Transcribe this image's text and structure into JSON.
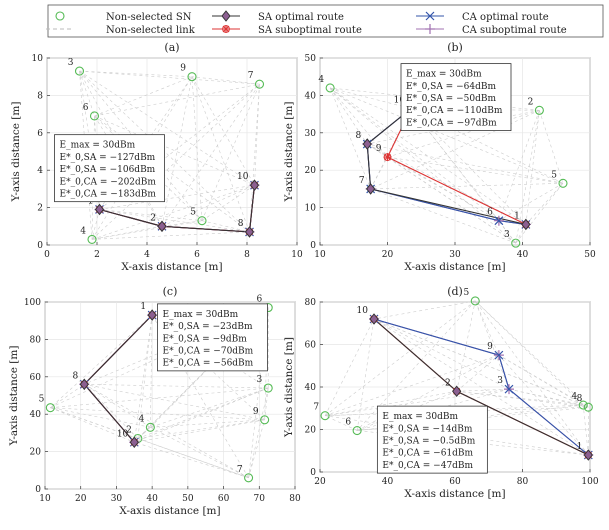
{
  "legend": {
    "items": [
      {
        "key": "nonselected_sn",
        "label": "Non-selected SN",
        "kind": "circle",
        "color": "#55bb55"
      },
      {
        "key": "nonselected_link",
        "label": "Non-selected link",
        "kind": "dash",
        "color": "#bbbbbb"
      },
      {
        "key": "sa_opt",
        "label": "SA optimal route",
        "kind": "diamond",
        "color": "#333333"
      },
      {
        "key": "sa_sub",
        "label": "SA suboptimal route",
        "kind": "star",
        "color": "#dd3333"
      },
      {
        "key": "ca_opt",
        "label": "CA optimal route",
        "kind": "x",
        "color": "#3355aa"
      },
      {
        "key": "ca_sub",
        "label": "CA suboptimal route",
        "kind": "plus",
        "color": "#a070b0"
      }
    ]
  },
  "colors": {
    "sa_opt": "#333333",
    "sa_sub": "#dd3333",
    "ca_opt": "#3355aa",
    "ca_sub": "#a070b0",
    "node": "#55bb55",
    "link": "#cccccc",
    "route_node_fill": "#8c5f91"
  },
  "chart_data": [
    {
      "type": "scatter",
      "title": "(a)",
      "xlabel": "X-axis distance [m]",
      "ylabel": "Y-axis distance [m]",
      "xlim": [
        0,
        10
      ],
      "ylim": [
        0,
        10
      ],
      "xticks": [
        0,
        2,
        4,
        6,
        8,
        10
      ],
      "yticks": [
        0,
        2,
        4,
        6,
        8,
        10
      ],
      "grid": true,
      "nodes": [
        {
          "id": "1",
          "x": 2.1,
          "y": 1.9
        },
        {
          "id": "2",
          "x": 4.6,
          "y": 1.0
        },
        {
          "id": "3",
          "x": 1.3,
          "y": 9.3
        },
        {
          "id": "4",
          "x": 1.8,
          "y": 0.3
        },
        {
          "id": "5",
          "x": 6.2,
          "y": 1.3
        },
        {
          "id": "6",
          "x": 1.9,
          "y": 6.9
        },
        {
          "id": "7",
          "x": 8.5,
          "y": 8.6
        },
        {
          "id": "8",
          "x": 8.1,
          "y": 0.7
        },
        {
          "id": "9",
          "x": 5.8,
          "y": 9.0
        },
        {
          "id": "10",
          "x": 8.3,
          "y": 3.2
        }
      ],
      "routes": [
        {
          "series": "ca_sub",
          "path": [
            "1",
            "2",
            "8",
            "10"
          ]
        },
        {
          "series": "ca_opt",
          "path": [
            "1",
            "2",
            "8",
            "10"
          ]
        },
        {
          "series": "sa_sub",
          "path": [
            "1",
            "2",
            "8",
            "10"
          ]
        },
        {
          "series": "sa_opt",
          "path": [
            "1",
            "2",
            "8",
            "10"
          ]
        }
      ],
      "annotation": {
        "anchor": [
          0.3,
          5.9
        ],
        "lines": [
          "E_max = 30dBm",
          "E*_0,SA = −127dBm",
          "E*_0,SA = −106dBm",
          "E*_0,CA = −202dBm",
          "E*_0,CA = −183dBm"
        ]
      }
    },
    {
      "type": "scatter",
      "title": "(b)",
      "xlabel": "X-axis distance [m]",
      "ylabel": "Y-axis distance [m]",
      "xlim": [
        10,
        50
      ],
      "ylim": [
        0,
        50
      ],
      "xticks": [
        10,
        20,
        30,
        40,
        50
      ],
      "yticks": [
        0,
        10,
        20,
        30,
        40,
        50
      ],
      "grid": true,
      "nodes": [
        {
          "id": "1",
          "x": 40.5,
          "y": 5.5
        },
        {
          "id": "2",
          "x": 42.5,
          "y": 36.0
        },
        {
          "id": "3",
          "x": 39.0,
          "y": 0.5
        },
        {
          "id": "4",
          "x": 11.5,
          "y": 42.0
        },
        {
          "id": "5",
          "x": 46.0,
          "y": 16.5
        },
        {
          "id": "6",
          "x": 36.5,
          "y": 6.5
        },
        {
          "id": "7",
          "x": 17.5,
          "y": 15.0
        },
        {
          "id": "8",
          "x": 17.0,
          "y": 27.0
        },
        {
          "id": "9",
          "x": 20.0,
          "y": 23.5
        },
        {
          "id": "10",
          "x": 23.5,
          "y": 36.5
        }
      ],
      "routes": [
        {
          "series": "ca_sub",
          "path": [
            "10",
            "8",
            "7",
            "6",
            "1"
          ]
        },
        {
          "series": "ca_opt",
          "path": [
            "10",
            "8",
            "7",
            "6",
            "1"
          ]
        },
        {
          "series": "sa_sub",
          "path": [
            "10",
            "9",
            "1"
          ]
        },
        {
          "series": "sa_opt",
          "path": [
            "10",
            "8",
            "7",
            "1"
          ]
        }
      ],
      "annotation": {
        "anchor": [
          22.0,
          48.5
        ],
        "lines": [
          "E_max = 30dBm",
          "E*_0,SA = −64dBm",
          "E*_0,SA = −50dBm",
          "E*_0,CA = −110dBm",
          "E*_0,CA = −97dBm"
        ]
      }
    },
    {
      "type": "scatter",
      "title": "(c)",
      "xlabel": "X-axis distance [m]",
      "ylabel": "Y-axis distance [m]",
      "xlim": [
        10,
        80
      ],
      "ylim": [
        0,
        100
      ],
      "xticks": [
        10,
        20,
        30,
        40,
        50,
        60,
        70,
        80
      ],
      "yticks": [
        0,
        20,
        40,
        60,
        80,
        100
      ],
      "grid": true,
      "nodes": [
        {
          "id": "1",
          "x": 40.0,
          "y": 93.0
        },
        {
          "id": "2",
          "x": 36.0,
          "y": 27.0
        },
        {
          "id": "3",
          "x": 72.5,
          "y": 54.0
        },
        {
          "id": "4",
          "x": 39.5,
          "y": 33.0
        },
        {
          "id": "5",
          "x": 11.5,
          "y": 43.5
        },
        {
          "id": "6",
          "x": 72.5,
          "y": 97.0
        },
        {
          "id": "7",
          "x": 67.0,
          "y": 6.0
        },
        {
          "id": "8",
          "x": 21.0,
          "y": 56.0
        },
        {
          "id": "9",
          "x": 71.5,
          "y": 37.0
        },
        {
          "id": "10",
          "x": 35.0,
          "y": 25.0
        }
      ],
      "routes": [
        {
          "series": "ca_sub",
          "path": [
            "1",
            "8",
            "10"
          ]
        },
        {
          "series": "ca_opt",
          "path": [
            "1",
            "8",
            "10"
          ]
        },
        {
          "series": "sa_sub",
          "path": [
            "1",
            "8",
            "10"
          ]
        },
        {
          "series": "sa_opt",
          "path": [
            "1",
            "8",
            "10"
          ]
        }
      ],
      "annotation": {
        "anchor": [
          41.5,
          99.0
        ],
        "lines": [
          "E_max = 30dBm",
          "E*_0,SA = −23dBm",
          "E*_0,SA = −9dBm",
          "E*_0,CA = −70dBm",
          "E*_0,CA = −56dBm"
        ]
      }
    },
    {
      "type": "scatter",
      "title": "(d)",
      "xlabel": "X-axis distance [m]",
      "ylabel": "Y-axis distance [m]",
      "xlim": [
        20,
        100
      ],
      "ylim": [
        0,
        80
      ],
      "xticks": [
        20,
        40,
        60,
        80,
        100
      ],
      "yticks": [
        0,
        20,
        40,
        60,
        80
      ],
      "grid": true,
      "nodes": [
        {
          "id": "1",
          "x": 99.5,
          "y": 8.0
        },
        {
          "id": "2",
          "x": 60.5,
          "y": 38.0
        },
        {
          "id": "3",
          "x": 76.0,
          "y": 39.0
        },
        {
          "id": "4",
          "x": 98.0,
          "y": 31.5
        },
        {
          "id": "5",
          "x": 66.0,
          "y": 80.5
        },
        {
          "id": "6",
          "x": 31.0,
          "y": 19.5
        },
        {
          "id": "7",
          "x": 21.5,
          "y": 26.5
        },
        {
          "id": "8",
          "x": 99.5,
          "y": 30.5
        },
        {
          "id": "9",
          "x": 73.0,
          "y": 55.0
        },
        {
          "id": "10",
          "x": 36.0,
          "y": 72.0
        }
      ],
      "routes": [
        {
          "series": "ca_sub",
          "path": [
            "10",
            "9",
            "3",
            "1"
          ]
        },
        {
          "series": "ca_opt",
          "path": [
            "10",
            "9",
            "3",
            "1"
          ]
        },
        {
          "series": "sa_sub",
          "path": [
            "10",
            "2",
            "1"
          ]
        },
        {
          "series": "sa_opt",
          "path": [
            "10",
            "2",
            "1"
          ]
        }
      ],
      "annotation": {
        "anchor": [
          37.0,
          31.0
        ],
        "lines": [
          "E_max = 30dBm",
          "E*_0,SA = −14dBm",
          "E*_0,SA = −0.5dBm",
          "E*_0,CA = −61dBm",
          "E*_0,CA = −47dBm"
        ]
      }
    }
  ]
}
